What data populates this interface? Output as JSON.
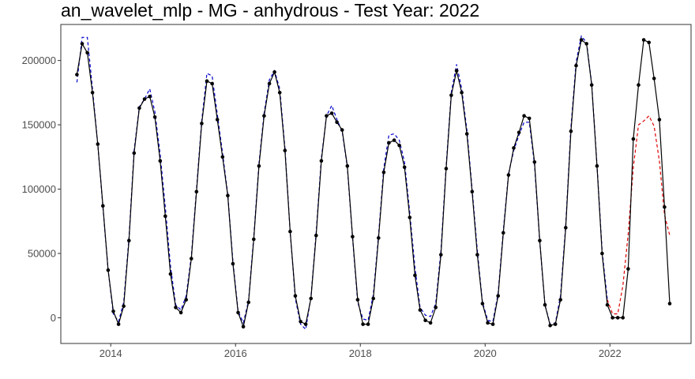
{
  "chart_data": {
    "type": "line",
    "title": "an_wavelet_mlp - MG - anhydrous - Test Year: 2022",
    "xlabel": "",
    "ylabel": "",
    "xlim": [
      2013.2,
      2023.3
    ],
    "ylim": [
      -20000,
      228000
    ],
    "x_ticks": [
      {
        "value": 2014,
        "label": "2014"
      },
      {
        "value": 2016,
        "label": "2016"
      },
      {
        "value": 2018,
        "label": "2018"
      },
      {
        "value": 2020,
        "label": "2020"
      },
      {
        "value": 2022,
        "label": "2022"
      }
    ],
    "y_ticks": [
      {
        "value": 0,
        "label": "0"
      },
      {
        "value": 50000,
        "label": "50000"
      },
      {
        "value": 100000,
        "label": "100000"
      },
      {
        "value": 150000,
        "label": "150000"
      },
      {
        "value": 200000,
        "label": "200000"
      }
    ],
    "grid": false,
    "legend": "none",
    "colors": {
      "actual": "#000000",
      "fitted": "#0000cc",
      "forecast": "#dd0000"
    },
    "series": [
      {
        "key": "actual",
        "style": "solid-with-points",
        "x": [
          2013.458,
          2013.542,
          2013.625,
          2013.708,
          2013.792,
          2013.875,
          2013.958,
          2014.042,
          2014.125,
          2014.208,
          2014.292,
          2014.375,
          2014.458,
          2014.542,
          2014.625,
          2014.708,
          2014.792,
          2014.875,
          2014.958,
          2015.042,
          2015.125,
          2015.208,
          2015.292,
          2015.375,
          2015.458,
          2015.542,
          2015.625,
          2015.708,
          2015.792,
          2015.875,
          2015.958,
          2016.042,
          2016.125,
          2016.208,
          2016.292,
          2016.375,
          2016.458,
          2016.542,
          2016.625,
          2016.708,
          2016.792,
          2016.875,
          2016.958,
          2017.042,
          2017.125,
          2017.208,
          2017.292,
          2017.375,
          2017.458,
          2017.542,
          2017.625,
          2017.708,
          2017.792,
          2017.875,
          2017.958,
          2018.042,
          2018.125,
          2018.208,
          2018.292,
          2018.375,
          2018.458,
          2018.542,
          2018.625,
          2018.708,
          2018.792,
          2018.875,
          2018.958,
          2019.042,
          2019.125,
          2019.208,
          2019.292,
          2019.375,
          2019.458,
          2019.542,
          2019.625,
          2019.708,
          2019.792,
          2019.875,
          2019.958,
          2020.042,
          2020.125,
          2020.208,
          2020.292,
          2020.375,
          2020.458,
          2020.542,
          2020.625,
          2020.708,
          2020.792,
          2020.875,
          2020.958,
          2021.042,
          2021.125,
          2021.208,
          2021.292,
          2021.375,
          2021.458,
          2021.542,
          2021.625,
          2021.708,
          2021.792,
          2021.875,
          2021.958,
          2022.042,
          2022.125,
          2022.208,
          2022.292,
          2022.375,
          2022.458,
          2022.542,
          2022.625,
          2022.708,
          2022.792,
          2022.875,
          2022.958
        ],
        "y": [
          189000,
          213000,
          206000,
          175000,
          135000,
          87000,
          37000,
          5000,
          -5000,
          9000,
          60000,
          128000,
          163000,
          170000,
          172000,
          156000,
          122000,
          79000,
          34000,
          8000,
          4000,
          14000,
          46000,
          98000,
          151000,
          184000,
          182000,
          154000,
          125000,
          95000,
          42000,
          4000,
          -7000,
          12000,
          61000,
          118000,
          157000,
          182000,
          191000,
          175000,
          130000,
          67000,
          17000,
          -3000,
          -5000,
          15000,
          64000,
          122000,
          157000,
          159000,
          152000,
          146000,
          118000,
          63000,
          14000,
          -5000,
          -5000,
          15000,
          62000,
          113000,
          136000,
          138000,
          134000,
          117000,
          78000,
          33000,
          6000,
          -2000,
          -4000,
          8000,
          49000,
          116000,
          173000,
          192000,
          175000,
          143000,
          98000,
          49000,
          11000,
          -4000,
          -5000,
          17000,
          66000,
          111000,
          132000,
          144000,
          157000,
          155000,
          121000,
          60000,
          10000,
          -6000,
          -5000,
          14000,
          70000,
          145000,
          196000,
          216000,
          213000,
          181000,
          118000,
          50000,
          10000,
          0,
          0,
          0,
          38000,
          139000,
          181000,
          216000,
          214000,
          186000,
          154000,
          86000,
          11000
        ]
      },
      {
        "key": "fitted",
        "style": "dashed",
        "x": [
          2013.458,
          2013.542,
          2013.625,
          2013.708,
          2013.792,
          2013.875,
          2013.958,
          2014.042,
          2014.125,
          2014.208,
          2014.292,
          2014.375,
          2014.458,
          2014.542,
          2014.625,
          2014.708,
          2014.792,
          2014.875,
          2014.958,
          2015.042,
          2015.125,
          2015.208,
          2015.292,
          2015.375,
          2015.458,
          2015.542,
          2015.625,
          2015.708,
          2015.792,
          2015.875,
          2015.958,
          2016.042,
          2016.125,
          2016.208,
          2016.292,
          2016.375,
          2016.458,
          2016.542,
          2016.625,
          2016.708,
          2016.792,
          2016.875,
          2016.958,
          2017.042,
          2017.125,
          2017.208,
          2017.292,
          2017.375,
          2017.458,
          2017.542,
          2017.625,
          2017.708,
          2017.792,
          2017.875,
          2017.958,
          2018.042,
          2018.125,
          2018.208,
          2018.292,
          2018.375,
          2018.458,
          2018.542,
          2018.625,
          2018.708,
          2018.792,
          2018.875,
          2018.958,
          2019.042,
          2019.125,
          2019.208,
          2019.292,
          2019.375,
          2019.458,
          2019.542,
          2019.625,
          2019.708,
          2019.792,
          2019.875,
          2019.958,
          2020.042,
          2020.125,
          2020.208,
          2020.292,
          2020.375,
          2020.458,
          2020.542,
          2020.625,
          2020.708,
          2020.792,
          2020.875,
          2020.958,
          2021.042,
          2021.125,
          2021.208,
          2021.292,
          2021.375,
          2021.458,
          2021.542,
          2021.625,
          2021.708,
          2021.792,
          2021.875,
          2021.958
        ],
        "y": [
          183000,
          218000,
          218000,
          178000,
          135000,
          86000,
          37000,
          3000,
          -3000,
          12000,
          62000,
          130000,
          164000,
          170000,
          178000,
          160000,
          127000,
          86000,
          40000,
          10000,
          6000,
          17000,
          48000,
          100000,
          153000,
          190000,
          188000,
          158000,
          128000,
          96000,
          44000,
          5000,
          -4000,
          13000,
          63000,
          120000,
          159000,
          185000,
          192000,
          178000,
          132000,
          67000,
          15000,
          -5000,
          -9000,
          16000,
          66000,
          124000,
          157000,
          165000,
          154000,
          145000,
          117000,
          62000,
          12000,
          -1000,
          -2000,
          18000,
          64000,
          116000,
          142000,
          143000,
          138000,
          121000,
          82000,
          39000,
          8000,
          2000,
          1000,
          11000,
          52000,
          118000,
          175000,
          197000,
          178000,
          146000,
          100000,
          52000,
          12000,
          -2000,
          -3000,
          19000,
          68000,
          112000,
          130000,
          142000,
          152000,
          152000,
          119000,
          59000,
          10000,
          -5000,
          -4000,
          17000,
          72000,
          148000,
          199000,
          219000,
          214000,
          182000,
          119000,
          52000,
          14000
        ]
      },
      {
        "key": "forecast",
        "style": "dashed",
        "x": [
          2021.958,
          2022.042,
          2022.125,
          2022.208,
          2022.292,
          2022.375,
          2022.458,
          2022.542,
          2022.625,
          2022.708,
          2022.792,
          2022.875,
          2022.958
        ],
        "y": [
          14000,
          3000,
          3000,
          25000,
          65000,
          117000,
          150000,
          153000,
          157000,
          149000,
          122000,
          80000,
          64000
        ]
      }
    ]
  }
}
